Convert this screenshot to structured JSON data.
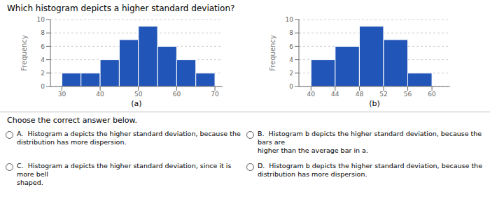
{
  "title": "Which histogram depicts a higher standard deviation?",
  "annotations": [
    "Choose the correct answer below.",
    "A.  Histogram a depicts the higher standard deviation, because the\ndistribution has more dispersion.",
    "C.  Histogram a depicts the higher standard deviation, since it is more bell\nshaped.",
    "B.  Histogram b depicts the higher standard deviation, because the bars are\nhigher than the average bar in a.",
    "D.  Histogram b depicts the higher standard deviation, because the\ndistribution has more dispersion."
  ],
  "chart_data": [
    {
      "type": "histogram",
      "xlabel": "(a)",
      "ylabel": "Frequency",
      "bins": [
        30,
        35,
        40,
        45,
        50,
        55,
        60,
        65,
        70
      ],
      "values": [
        2,
        2,
        4,
        7,
        9,
        6,
        4,
        2
      ],
      "color": "#2155b8",
      "xlim": [
        27,
        72
      ],
      "ylim": [
        0,
        10
      ],
      "xticks": [
        30,
        40,
        50,
        60,
        70
      ],
      "yticks": [
        0,
        2,
        4,
        6,
        8,
        10
      ],
      "grid": true
    },
    {
      "type": "histogram",
      "xlabel": "(b)",
      "ylabel": "Frequency",
      "bins": [
        40,
        44,
        48,
        52,
        56,
        60
      ],
      "values": [
        4,
        6,
        9,
        7,
        2
      ],
      "color": "#2155b8",
      "xlim": [
        38,
        63
      ],
      "ylim": [
        0,
        10
      ],
      "xticks": [
        40,
        44,
        48,
        52,
        56,
        60
      ],
      "yticks": [
        0,
        2,
        4,
        6,
        8,
        10
      ],
      "grid": true
    }
  ]
}
